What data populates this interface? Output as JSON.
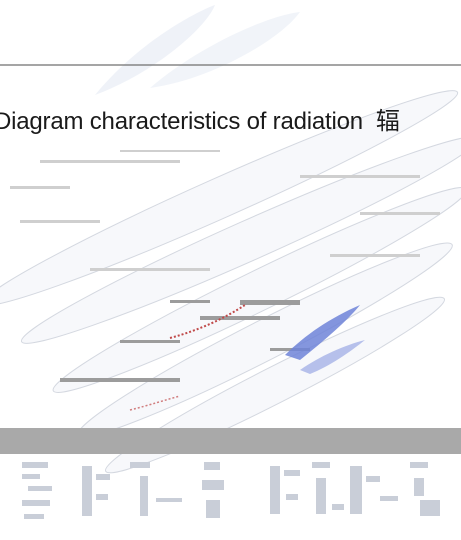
{
  "caption": {
    "text": "Diagram characteristics of radiation",
    "cjk_suffix": "辐"
  },
  "colors": {
    "rule_line": "#6f6f6f",
    "gray_band": "#a9a9a9",
    "faint_leaf": "#e6ebf3",
    "accent_blue": "#6f84d8",
    "accent_red": "#c04a4a"
  }
}
